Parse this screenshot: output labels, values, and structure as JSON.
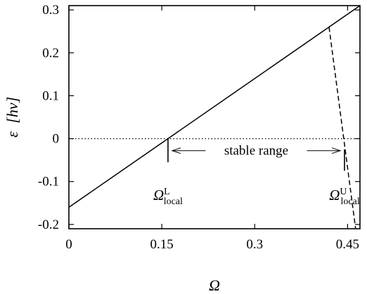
{
  "chart_data": {
    "type": "line",
    "xlabel": "Ω",
    "ylabel": {
      "symbol": "ε",
      "unit": "[hν]"
    },
    "xlim": [
      0,
      0.47
    ],
    "ylim": [
      -0.21,
      0.31
    ],
    "xticks": [
      {
        "value": 0,
        "label": "0"
      },
      {
        "value": 0.15,
        "label": "0.15"
      },
      {
        "value": 0.3,
        "label": "0.3"
      },
      {
        "value": 0.45,
        "label": "0.45"
      }
    ],
    "yticks": [
      {
        "value": 0.3,
        "label": "0.3"
      },
      {
        "value": 0.2,
        "label": "0.2"
      },
      {
        "value": 0.1,
        "label": "0.1"
      },
      {
        "value": 0,
        "label": "0"
      },
      {
        "value": -0.1,
        "label": "-0.1"
      },
      {
        "value": -0.2,
        "label": "-0.2"
      }
    ],
    "series": [
      {
        "style": "solid",
        "x": [
          0,
          0.47
        ],
        "y": [
          -0.16,
          0.31
        ]
      },
      {
        "style": "dashed",
        "x": [
          0.42,
          0.463
        ],
        "y": [
          0.26,
          -0.21
        ]
      },
      {
        "style": "dotted",
        "x": [
          0,
          0.47
        ],
        "y": [
          0,
          0
        ]
      }
    ],
    "markers": [
      {
        "x": 0.16,
        "y0": 0,
        "y1": -0.055
      },
      {
        "x": 0.445,
        "y0": -0.025,
        "y1": -0.075
      }
    ],
    "range_arrow": {
      "x_from": 0.16,
      "x_to": 0.445,
      "y": -0.028,
      "label": "stable range"
    },
    "annotations": [
      {
        "symbol": "Ω",
        "sup": "L",
        "sub": "local",
        "x": 0.16
      },
      {
        "symbol": "Ω",
        "sup": "U",
        "sub": "local",
        "x": 0.445
      }
    ],
    "grid": false,
    "legend": "none"
  }
}
